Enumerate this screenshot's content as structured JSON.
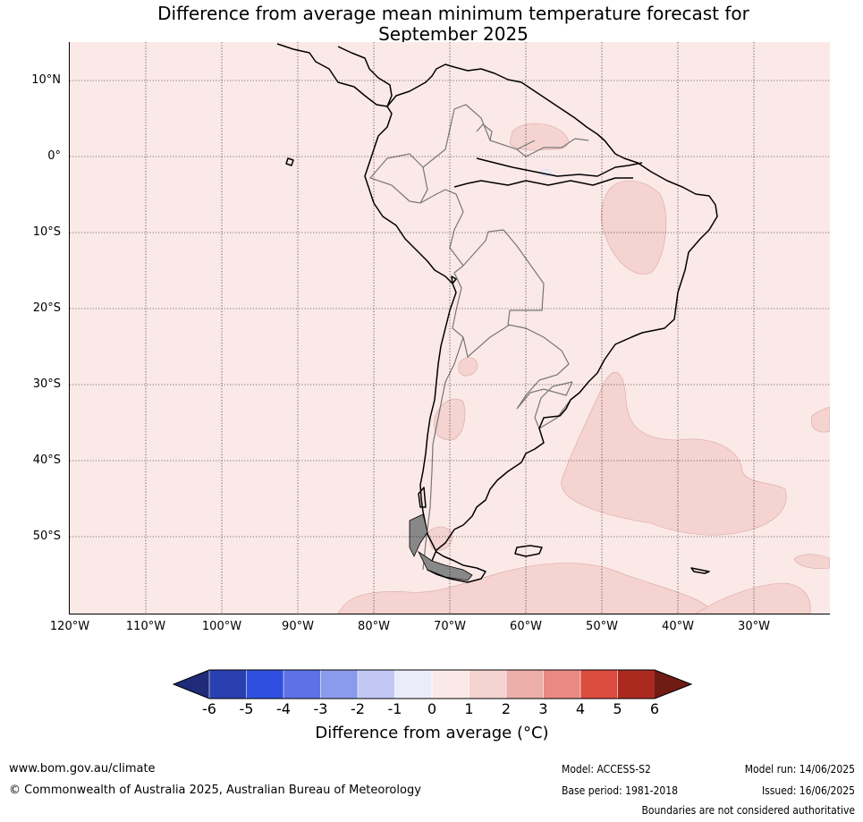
{
  "title": {
    "line1": "Difference from average mean minimum temperature forecast for",
    "line2": "September 2025"
  },
  "map": {
    "background_color": "#fbe9e7",
    "anomaly_color": "#f4d3d1",
    "cool_anomaly_color": "#e9ecf9",
    "lat_labels": [
      "10°N",
      "0°",
      "10°S",
      "20°S",
      "30°S",
      "40°S",
      "50°S"
    ],
    "lon_labels": [
      "120°W",
      "110°W",
      "100°W",
      "90°W",
      "80°W",
      "70°W",
      "60°W",
      "50°W",
      "40°W",
      "30°W"
    ]
  },
  "colorbar": {
    "ticks": [
      "-6",
      "-5",
      "-4",
      "-3",
      "-2",
      "-1",
      "0",
      "1",
      "2",
      "3",
      "4",
      "5",
      "6"
    ],
    "colors": [
      "#1f2a78",
      "#2a3fb0",
      "#2f4fe0",
      "#5c72e6",
      "#8a9bee",
      "#c1c8f4",
      "#ebecfa",
      "#fbe9e7",
      "#f4d3d1",
      "#ebaea9",
      "#e88a82",
      "#dc4c3f",
      "#ab2a20",
      "#701b14"
    ],
    "label": "Difference from average (°C)"
  },
  "footer": {
    "website": "www.bom.gov.au/climate",
    "copyright": "© Commonwealth of Australia 2025, Australian Bureau of Meteorology",
    "model": "Model: ACCESS-S2",
    "base_period": "Base period: 1981-2018",
    "model_run": "Model run: 14/06/2025",
    "issued": "Issued: 16/06/2025",
    "disclaimer": "Boundaries are not considered authoritative"
  }
}
